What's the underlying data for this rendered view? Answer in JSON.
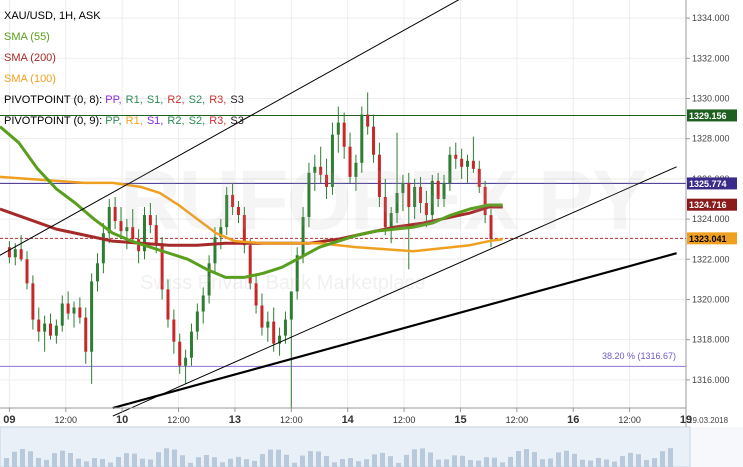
{
  "chart_data": {
    "type": "candlestick",
    "title": "XAU/USD, 1H, ASK",
    "y_axis": {
      "ticks": [
        1316.0,
        1318.0,
        1320.0,
        1322.0,
        1324.0,
        1326.0,
        1328.0,
        1330.0,
        1332.0,
        1334.0
      ],
      "range": [
        1314.6,
        1334.9
      ],
      "position": "right"
    },
    "x_axis": {
      "ticks": [
        {
          "label": "09",
          "day": true,
          "t": 0
        },
        {
          "label": "12:00",
          "day": false,
          "t": 12
        },
        {
          "label": "10",
          "day": true,
          "t": 24
        },
        {
          "label": "12:00",
          "day": false,
          "t": 36
        },
        {
          "label": "13",
          "day": true,
          "t": 48
        },
        {
          "label": "12:00",
          "day": false,
          "t": 60
        },
        {
          "label": "14",
          "day": true,
          "t": 72
        },
        {
          "label": "12:00",
          "day": false,
          "t": 84
        },
        {
          "label": "15",
          "day": true,
          "t": 96
        },
        {
          "label": "12:00",
          "day": false,
          "t": 108
        },
        {
          "label": "16",
          "day": true,
          "t": 120
        },
        {
          "label": "12:00",
          "day": false,
          "t": 132
        },
        {
          "label": "19",
          "day": true,
          "t": 144
        }
      ],
      "end_label": "19.03.2018",
      "range": [
        -2,
        144
      ]
    },
    "indicators": [
      {
        "name": "SMA (55)",
        "color": "#5a9e1e"
      },
      {
        "name": "SMA (200)",
        "color": "#a52a2a"
      },
      {
        "name": "SMA (100)",
        "color": "#f0a020"
      }
    ],
    "pivot_legends": [
      {
        "label": "PIVOTPOINT (0, 8):",
        "items": [
          {
            "text": "PP,",
            "color": "#8a2be2"
          },
          {
            "text": "R1,",
            "color": "#2e8b57"
          },
          {
            "text": "S1,",
            "color": "#2e8b57"
          },
          {
            "text": "R2,",
            "color": "#cc3333"
          },
          {
            "text": "S2,",
            "color": "#2e8b57"
          },
          {
            "text": "R3,",
            "color": "#cc3333"
          },
          {
            "text": "S3",
            "color": "#222222"
          }
        ]
      },
      {
        "label": "PIVOTPOINT (0, 9):",
        "items": [
          {
            "text": "PP,",
            "color": "#2e8b57"
          },
          {
            "text": "R1,",
            "color": "#f0a020"
          },
          {
            "text": "S1,",
            "color": "#8a2be2"
          },
          {
            "text": "R2,",
            "color": "#2e8b57"
          },
          {
            "text": "S2,",
            "color": "#2e8b57"
          },
          {
            "text": "R3,",
            "color": "#cc3333"
          },
          {
            "text": "S3",
            "color": "#222222"
          }
        ]
      }
    ],
    "price_labels": [
      {
        "value": 1329.156,
        "text": "1329.156",
        "bg": "#1f5f1f",
        "fg": "#ffffff"
      },
      {
        "value": 1325.774,
        "text": "1325.774",
        "bg": "#3a2a8a",
        "fg": "#ffffff"
      },
      {
        "value": 1324.716,
        "text": "1324.716",
        "bg": "#8b1a1a",
        "fg": "#ffffff"
      },
      {
        "value": 1323.041,
        "text": "1323.041",
        "bg": "#f0a020",
        "fg": "#000000"
      }
    ],
    "horizontal_lines": [
      {
        "value": 1329.156,
        "color": "#1f5f1f",
        "style": "solid"
      },
      {
        "value": 1325.774,
        "color": "#3a2a8a",
        "style": "solid"
      },
      {
        "value": 1323.041,
        "color": "#b03030",
        "style": "dashed"
      },
      {
        "value": 1316.67,
        "color": "#9370db",
        "style": "solid"
      }
    ],
    "fib_label": "38.20 % (1316.67)",
    "trend_lines": [
      {
        "points": [
          [
            -2,
            1322.2
          ],
          [
            104,
            1336.0
          ]
        ],
        "color": "#000000",
        "width": 1
      },
      {
        "points": [
          [
            22,
            1314.2
          ],
          [
            142,
            1326.6
          ]
        ],
        "color": "#000000",
        "width": 1
      },
      {
        "points": [
          [
            22,
            1314.6
          ],
          [
            142,
            1322.3
          ]
        ],
        "color": "#000000",
        "width": 2.2
      }
    ],
    "sma_55": [
      [
        -2,
        1328.6
      ],
      [
        2,
        1327.8
      ],
      [
        6,
        1326.5
      ],
      [
        10,
        1325.5
      ],
      [
        14,
        1324.8
      ],
      [
        18,
        1324.0
      ],
      [
        22,
        1323.3
      ],
      [
        26,
        1322.9
      ],
      [
        30,
        1322.6
      ],
      [
        34,
        1322.3
      ],
      [
        38,
        1322.0
      ],
      [
        42,
        1321.5
      ],
      [
        46,
        1321.1
      ],
      [
        50,
        1321.1
      ],
      [
        54,
        1321.3
      ],
      [
        58,
        1321.6
      ],
      [
        62,
        1322.1
      ],
      [
        66,
        1322.6
      ],
      [
        70,
        1322.9
      ],
      [
        74,
        1323.2
      ],
      [
        78,
        1323.4
      ],
      [
        82,
        1323.5
      ],
      [
        86,
        1323.6
      ],
      [
        90,
        1323.8
      ],
      [
        94,
        1324.2
      ],
      [
        98,
        1324.5
      ],
      [
        102,
        1324.7
      ],
      [
        105,
        1324.7
      ]
    ],
    "sma_100": [
      [
        -2,
        1326.1
      ],
      [
        4,
        1326.0
      ],
      [
        10,
        1325.9
      ],
      [
        16,
        1325.8
      ],
      [
        22,
        1325.8
      ],
      [
        28,
        1325.6
      ],
      [
        32,
        1325.3
      ],
      [
        36,
        1324.7
      ],
      [
        40,
        1324.0
      ],
      [
        44,
        1323.3
      ],
      [
        48,
        1322.9
      ],
      [
        54,
        1322.8
      ],
      [
        60,
        1322.8
      ],
      [
        66,
        1322.8
      ],
      [
        70,
        1322.7
      ],
      [
        74,
        1322.6
      ],
      [
        80,
        1322.5
      ],
      [
        86,
        1322.4
      ],
      [
        90,
        1322.5
      ],
      [
        94,
        1322.6
      ],
      [
        98,
        1322.7
      ],
      [
        102,
        1322.9
      ],
      [
        105,
        1323.0
      ]
    ],
    "sma_200": [
      [
        -2,
        1324.5
      ],
      [
        4,
        1324.0
      ],
      [
        10,
        1323.5
      ],
      [
        16,
        1323.2
      ],
      [
        22,
        1322.9
      ],
      [
        28,
        1322.8
      ],
      [
        34,
        1322.7
      ],
      [
        40,
        1322.7
      ],
      [
        46,
        1322.8
      ],
      [
        52,
        1322.8
      ],
      [
        58,
        1322.8
      ],
      [
        64,
        1322.8
      ],
      [
        70,
        1323.0
      ],
      [
        76,
        1323.3
      ],
      [
        82,
        1323.6
      ],
      [
        88,
        1323.8
      ],
      [
        94,
        1324.1
      ],
      [
        98,
        1324.3
      ],
      [
        102,
        1324.6
      ],
      [
        105,
        1324.6
      ]
    ],
    "candles_ohlc": [
      [
        1322.6,
        1322.9,
        1321.8,
        1322.1
      ],
      [
        1322.1,
        1322.8,
        1321.7,
        1322.5
      ],
      [
        1322.5,
        1323.2,
        1321.9,
        1322.0
      ],
      [
        1322.0,
        1322.4,
        1320.5,
        1320.8
      ],
      [
        1320.8,
        1321.2,
        1318.5,
        1319.0
      ],
      [
        1319.0,
        1319.6,
        1317.9,
        1318.4
      ],
      [
        1318.4,
        1319.2,
        1317.4,
        1318.8
      ],
      [
        1318.8,
        1319.3,
        1318.0,
        1318.2
      ],
      [
        1318.2,
        1319.0,
        1317.8,
        1318.7
      ],
      [
        1318.7,
        1320.2,
        1318.4,
        1319.8
      ],
      [
        1319.8,
        1320.4,
        1319.0,
        1319.3
      ],
      [
        1319.3,
        1319.9,
        1318.6,
        1319.6
      ],
      [
        1319.6,
        1320.1,
        1318.8,
        1319.1
      ],
      [
        1319.1,
        1319.6,
        1316.8,
        1317.4
      ],
      [
        1317.4,
        1321.3,
        1315.8,
        1320.9
      ],
      [
        1320.9,
        1322.3,
        1320.4,
        1321.8
      ],
      [
        1321.8,
        1323.8,
        1321.3,
        1323.3
      ],
      [
        1323.3,
        1325.0,
        1322.8,
        1324.6
      ],
      [
        1324.6,
        1325.1,
        1323.5,
        1323.9
      ],
      [
        1323.9,
        1324.6,
        1323.0,
        1323.4
      ],
      [
        1323.4,
        1324.0,
        1322.5,
        1323.6
      ],
      [
        1323.6,
        1324.5,
        1322.8,
        1323.0
      ],
      [
        1323.0,
        1323.5,
        1321.8,
        1322.4
      ],
      [
        1322.4,
        1324.6,
        1322.0,
        1324.2
      ],
      [
        1324.2,
        1324.8,
        1323.3,
        1323.7
      ],
      [
        1323.7,
        1324.2,
        1322.3,
        1322.8
      ],
      [
        1322.8,
        1323.1,
        1320.0,
        1320.5
      ],
      [
        1320.5,
        1321.0,
        1318.6,
        1319.0
      ],
      [
        1319.0,
        1319.5,
        1317.3,
        1317.9
      ],
      [
        1317.9,
        1318.3,
        1316.3,
        1316.7
      ],
      [
        1316.7,
        1317.5,
        1315.8,
        1317.1
      ],
      [
        1317.1,
        1318.8,
        1316.7,
        1318.4
      ],
      [
        1318.4,
        1319.8,
        1318.0,
        1319.4
      ],
      [
        1319.4,
        1320.6,
        1318.8,
        1320.2
      ],
      [
        1320.2,
        1322.2,
        1319.8,
        1321.8
      ],
      [
        1321.8,
        1323.6,
        1321.3,
        1323.1
      ],
      [
        1323.1,
        1324.0,
        1322.5,
        1323.6
      ],
      [
        1323.6,
        1325.6,
        1323.2,
        1325.2
      ],
      [
        1325.2,
        1325.8,
        1324.2,
        1324.6
      ],
      [
        1324.6,
        1324.9,
        1323.8,
        1324.2
      ],
      [
        1324.2,
        1324.6,
        1322.3,
        1322.7
      ],
      [
        1322.7,
        1323.0,
        1320.5,
        1320.8
      ],
      [
        1320.8,
        1321.3,
        1319.3,
        1319.7
      ],
      [
        1319.7,
        1320.3,
        1318.2,
        1318.6
      ],
      [
        1318.6,
        1319.4,
        1317.9,
        1318.9
      ],
      [
        1318.9,
        1319.6,
        1317.4,
        1317.8
      ],
      [
        1317.8,
        1318.6,
        1317.2,
        1318.2
      ],
      [
        1318.2,
        1319.4,
        1317.8,
        1319.0
      ],
      [
        1319.0,
        1319.8,
        1314.6,
        1320.4
      ],
      [
        1320.4,
        1322.6,
        1320.0,
        1322.2
      ],
      [
        1322.2,
        1324.6,
        1321.8,
        1324.1
      ],
      [
        1324.1,
        1326.8,
        1323.6,
        1326.3
      ],
      [
        1326.3,
        1327.2,
        1325.4,
        1326.6
      ],
      [
        1326.6,
        1327.6,
        1325.8,
        1326.2
      ],
      [
        1326.2,
        1327.0,
        1325.0,
        1325.6
      ],
      [
        1325.6,
        1328.8,
        1325.2,
        1328.2
      ],
      [
        1328.2,
        1329.6,
        1327.3,
        1328.8
      ],
      [
        1328.8,
        1329.3,
        1327.0,
        1327.6
      ],
      [
        1327.6,
        1328.3,
        1325.8,
        1326.1
      ],
      [
        1326.1,
        1327.2,
        1325.4,
        1326.8
      ],
      [
        1326.8,
        1329.6,
        1326.3,
        1329.2
      ],
      [
        1329.2,
        1330.3,
        1328.2,
        1328.6
      ],
      [
        1328.6,
        1329.2,
        1326.8,
        1327.2
      ],
      [
        1327.2,
        1327.8,
        1324.6,
        1325.1
      ],
      [
        1325.1,
        1326.0,
        1323.2,
        1323.6
      ],
      [
        1323.6,
        1324.6,
        1322.8,
        1324.3
      ],
      [
        1324.3,
        1328.3,
        1323.8,
        1325.3
      ],
      [
        1325.3,
        1326.2,
        1324.4,
        1325.8
      ],
      [
        1325.8,
        1326.3,
        1321.5,
        1324.6
      ],
      [
        1324.6,
        1326.0,
        1324.0,
        1325.6
      ],
      [
        1325.6,
        1326.1,
        1324.3,
        1324.8
      ],
      [
        1324.8,
        1325.4,
        1323.6,
        1324.2
      ],
      [
        1324.2,
        1326.2,
        1323.8,
        1325.9
      ],
      [
        1325.9,
        1326.3,
        1324.6,
        1325.0
      ],
      [
        1325.0,
        1326.2,
        1324.6,
        1325.8
      ],
      [
        1325.8,
        1327.6,
        1325.4,
        1327.2
      ],
      [
        1327.2,
        1327.8,
        1326.5,
        1327.0
      ],
      [
        1327.0,
        1327.5,
        1326.0,
        1326.6
      ],
      [
        1326.6,
        1327.2,
        1325.8,
        1326.9
      ],
      [
        1326.9,
        1328.1,
        1326.3,
        1326.5
      ],
      [
        1326.5,
        1326.9,
        1325.3,
        1325.6
      ],
      [
        1325.6,
        1325.9,
        1323.8,
        1324.2
      ],
      [
        1324.2,
        1324.5,
        1322.6,
        1323.0
      ]
    ]
  }
}
